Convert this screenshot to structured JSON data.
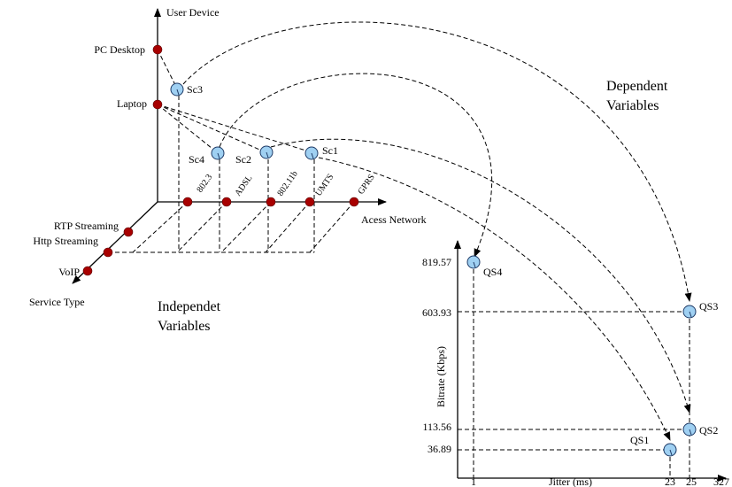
{
  "axes": {
    "user_device": "User Device",
    "access_network": "Acess Network",
    "service_type": "Service Type"
  },
  "user_devices": [
    "PC Desktop",
    "Laptop"
  ],
  "networks": [
    "802.3",
    "ADSL",
    "802.11b",
    "UMTS",
    "GPRS"
  ],
  "services": [
    "RTP Streaming",
    "Http Streaming",
    "VoIP"
  ],
  "scenarios": [
    "Sc3",
    "Sc4",
    "Sc2",
    "Sc1"
  ],
  "section_labels": {
    "independent_line1": "Independet",
    "independent_line2": "Variables",
    "dependent_line1": "Dependent",
    "dependent_line2": "Variables"
  },
  "chart_data": {
    "type": "scatter",
    "xlabel": "Jitter (ms)",
    "ylabel": "Bitrate (Kbps)",
    "x_ticks": [
      "1",
      "23",
      "25",
      "327"
    ],
    "y_ticks": [
      "819.57",
      "603.93",
      "113.56",
      "36.89"
    ],
    "points": [
      {
        "name": "QS4",
        "x": 1,
        "y": 819.57
      },
      {
        "name": "QS3",
        "x": 25,
        "y": 603.93
      },
      {
        "name": "QS2",
        "x": 25,
        "y": 113.56
      },
      {
        "name": "QS1",
        "x": 23,
        "y": 36.89
      }
    ]
  }
}
